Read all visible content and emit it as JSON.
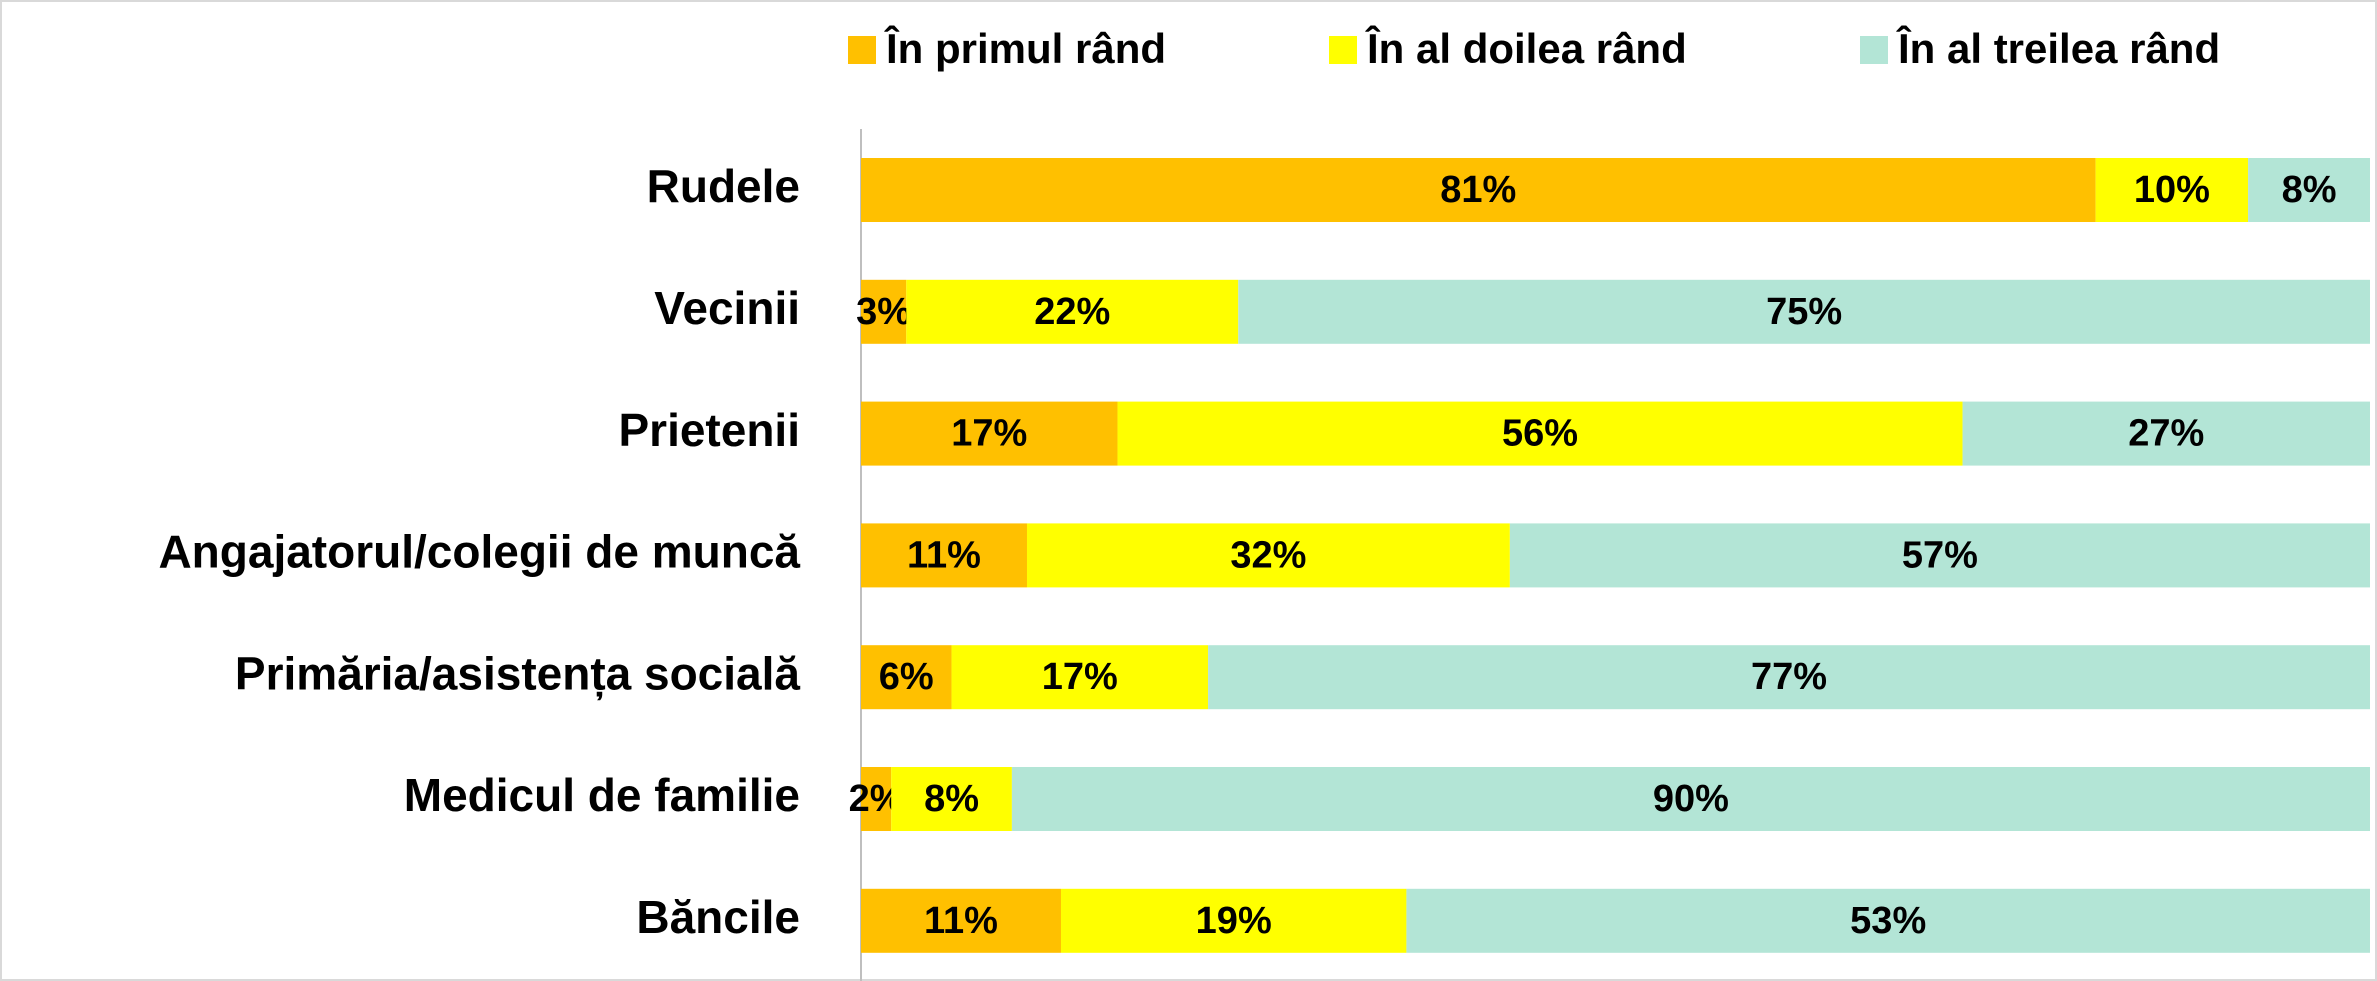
{
  "chart_data": {
    "type": "bar",
    "orientation": "horizontal",
    "stacking": "percent",
    "categories": [
      "Rudele",
      "Vecinii",
      "Prietenii",
      "Angajatorul/colegii de muncă",
      "Primăria/asistența socială",
      "Medicul de familie",
      "Băncile"
    ],
    "series": [
      {
        "name": "În primul rând",
        "color": "#FFC000",
        "values": [
          81,
          3,
          17,
          11,
          6,
          2,
          11
        ],
        "value_labels": [
          "81%",
          "3%",
          "17%",
          "11%",
          "6%",
          "2%",
          "11%"
        ]
      },
      {
        "name": "În al doilea rând",
        "color": "#FFFF00",
        "values": [
          10,
          22,
          56,
          32,
          17,
          8,
          19
        ],
        "value_labels": [
          "10%",
          "22%",
          "56%",
          "32%",
          "17%",
          "8%",
          "19%"
        ]
      },
      {
        "name": "În al treilea rând",
        "color": "#B3E5D6",
        "values": [
          8,
          75,
          27,
          57,
          77,
          90,
          53
        ],
        "value_labels": [
          "8%",
          "75%",
          "27%",
          "57%",
          "77%",
          "90%",
          "53%"
        ]
      }
    ],
    "legend": "top"
  }
}
